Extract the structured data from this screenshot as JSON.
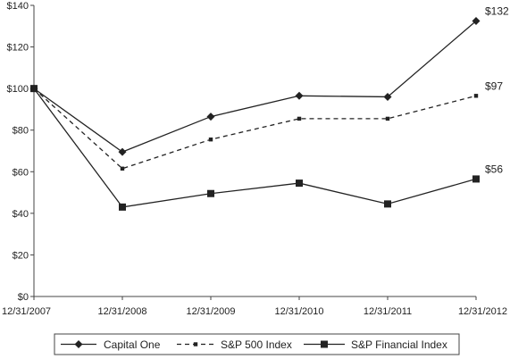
{
  "chart_data": {
    "type": "line",
    "categories": [
      "12/31/2007",
      "12/31/2008",
      "12/31/2009",
      "12/31/2010",
      "12/31/2011",
      "12/31/2012"
    ],
    "ylim": [
      0,
      140
    ],
    "yticks": [
      0,
      20,
      40,
      60,
      80,
      100,
      120,
      140
    ],
    "ytick_labels": [
      "$0",
      "$20",
      "$40",
      "$60",
      "$80",
      "$100",
      "$120",
      "$140"
    ],
    "grid": false,
    "legend_position": "bottom",
    "series": [
      {
        "name": "Capital One",
        "values": [
          100,
          69.5,
          86.5,
          96.5,
          96,
          132.5
        ],
        "marker": "diamond",
        "line": "solid",
        "color": "#222222"
      },
      {
        "name": "S&P 500 Index",
        "values": [
          100,
          61.5,
          75.5,
          85.5,
          85.5,
          96.5
        ],
        "marker": "small-square",
        "line": "dashed",
        "color": "#222222"
      },
      {
        "name": "S&P Financial Index",
        "values": [
          100,
          43,
          49.5,
          54.5,
          44.5,
          56.5
        ],
        "marker": "square",
        "line": "solid",
        "color": "#222222"
      }
    ],
    "end_labels": [
      "$132",
      "$97",
      "$56"
    ]
  }
}
